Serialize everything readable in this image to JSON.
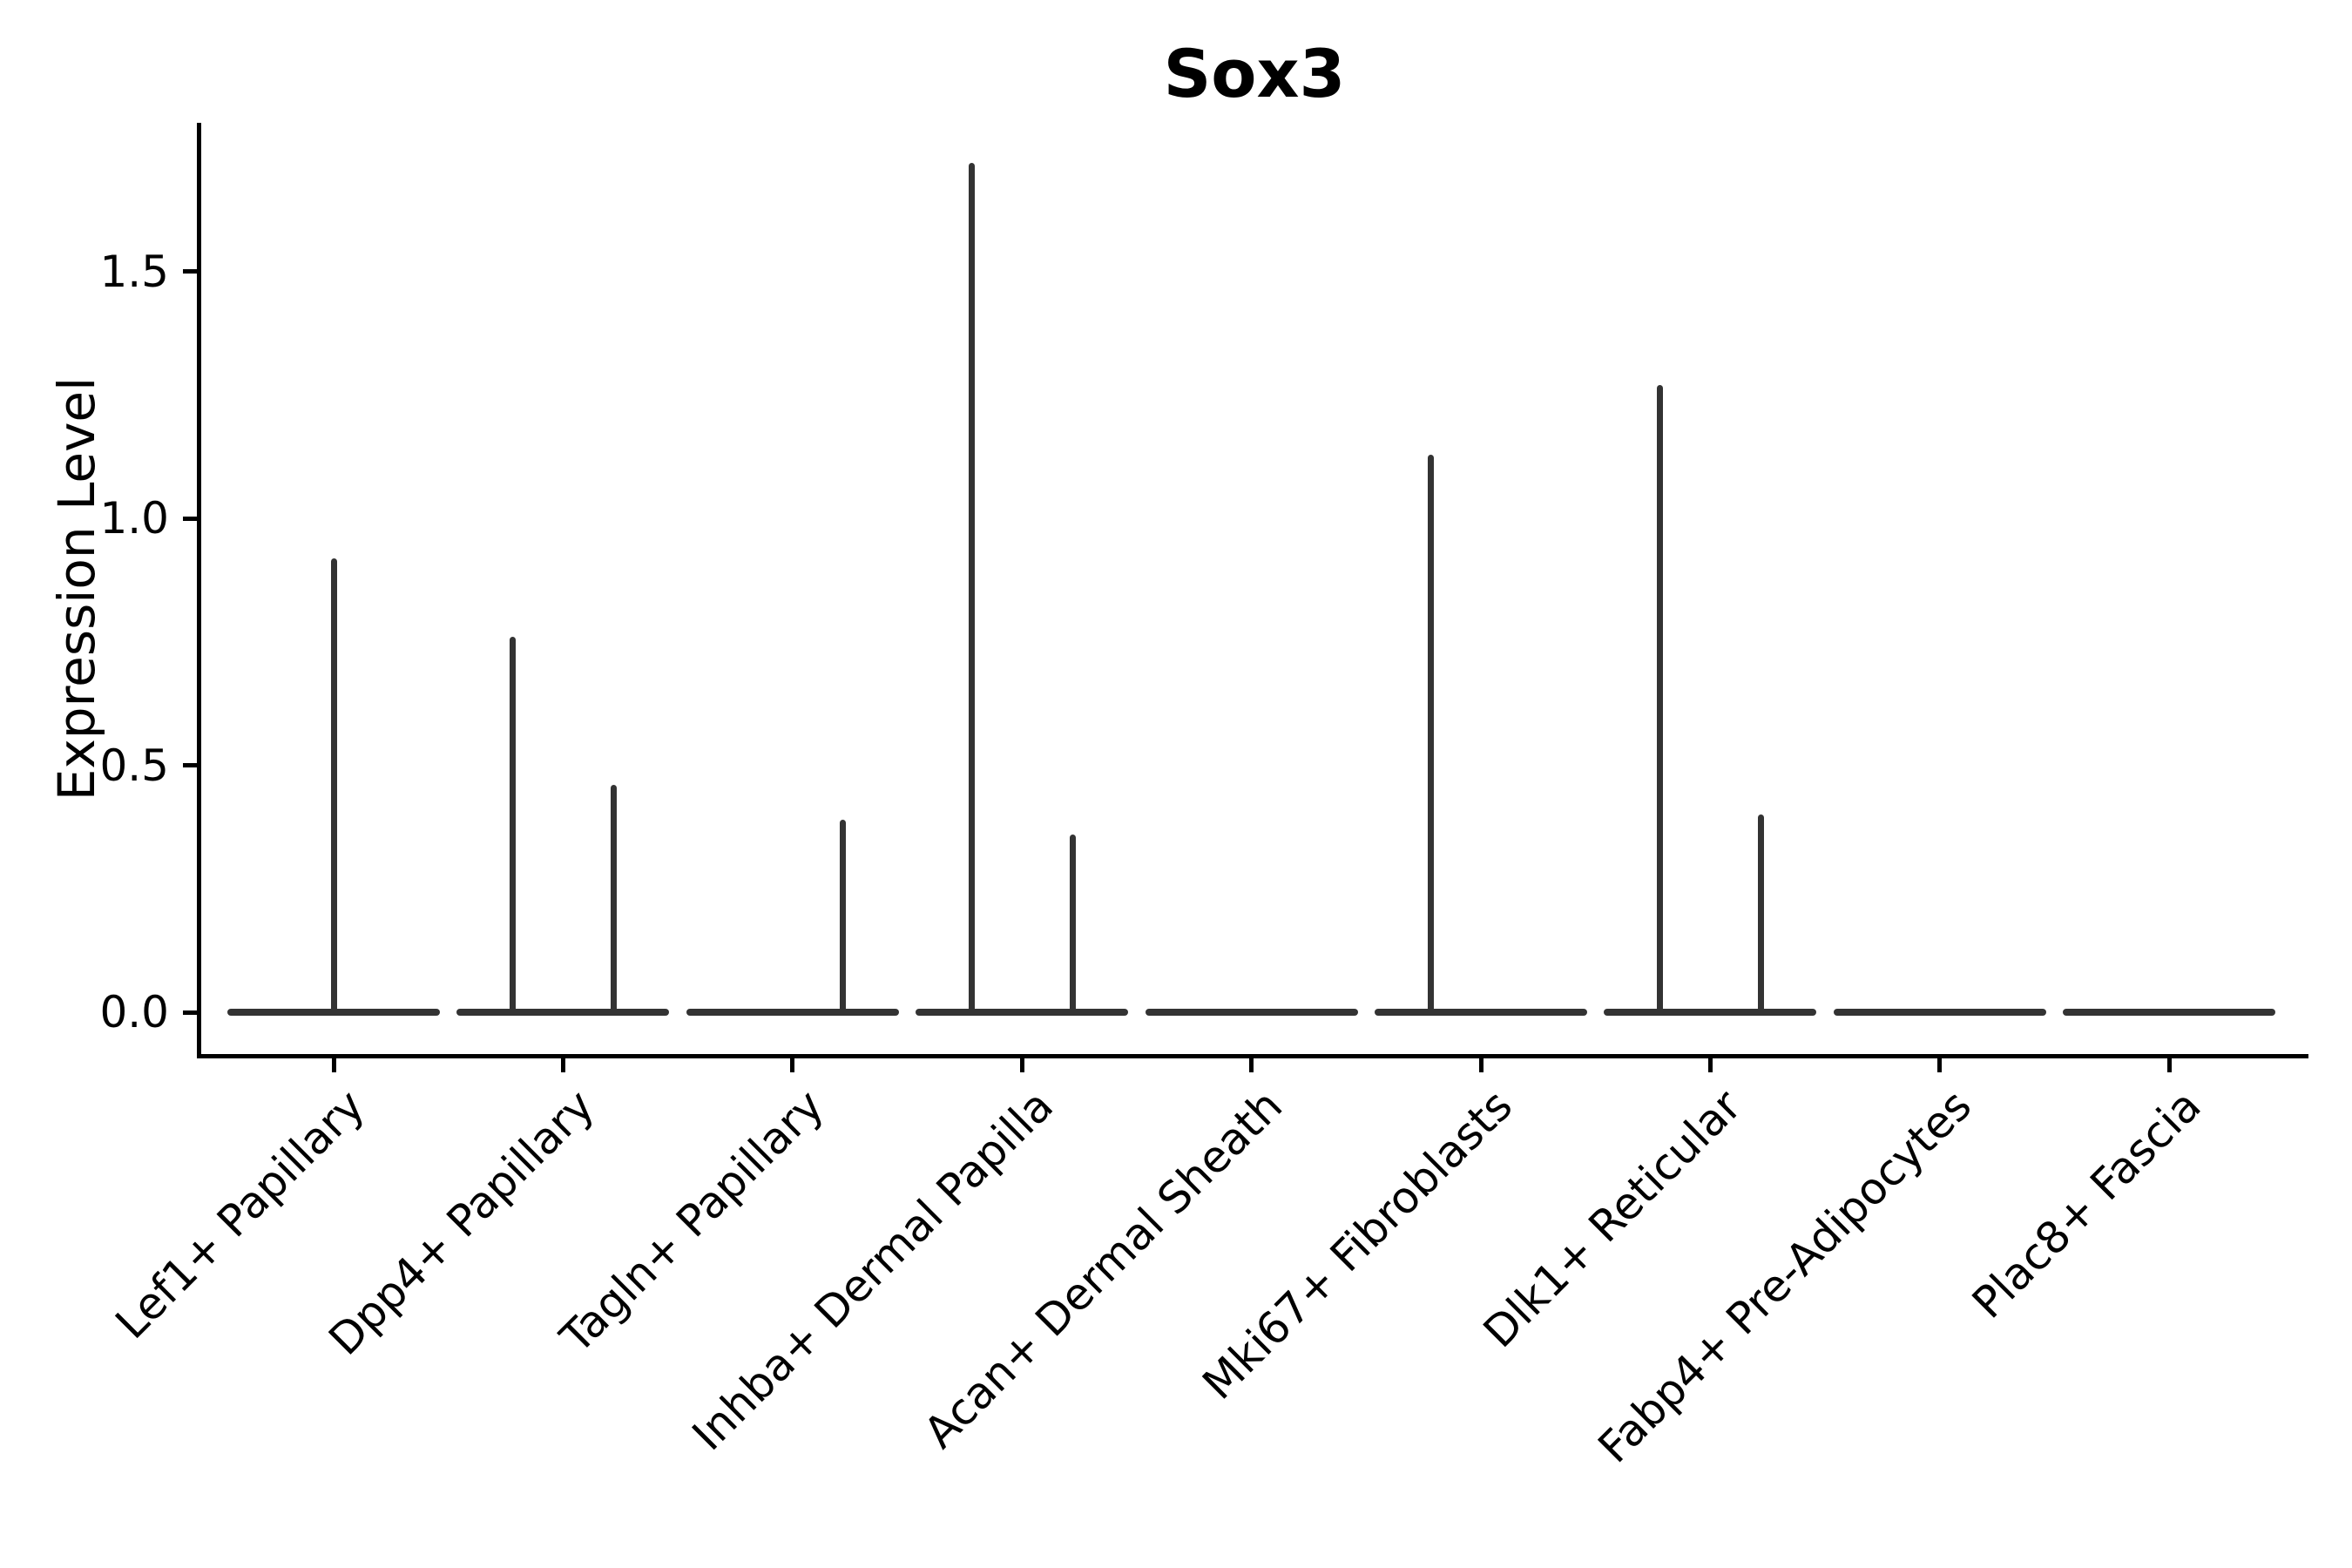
{
  "title": "Sox3",
  "ylabel": "Expression Level",
  "chart_data": {
    "type": "violin",
    "title": "Sox3",
    "xlabel": "",
    "ylabel": "Expression Level",
    "grid": false,
    "legend": "none",
    "ylim": [
      -0.09,
      1.8
    ],
    "yticks": [
      0.0,
      0.5,
      1.0,
      1.5
    ],
    "categories": [
      "Lef1+ Papillary",
      "Dpp4+ Papillary",
      "Tagln+ Papillary",
      "Inhba+ Dermal Papilla",
      "Acan+ Dermal Sheath",
      "Mki67+ Fibroblasts",
      "Dlk1+ Reticular",
      "Fabp4+ Pre-Adipocytes",
      "Plac8+ Fascia"
    ],
    "series": [
      {
        "category": "Lef1+ Papillary",
        "baseline_value": 0.0,
        "spikes": [
          {
            "value": 0.92,
            "x_offset_frac": 0.0
          }
        ]
      },
      {
        "category": "Dpp4+ Papillary",
        "baseline_value": 0.0,
        "spikes": [
          {
            "value": 0.76,
            "x_offset_frac": -0.22
          },
          {
            "value": 0.46,
            "x_offset_frac": 0.22
          }
        ]
      },
      {
        "category": "Tagln+ Papillary",
        "baseline_value": 0.0,
        "spikes": [
          {
            "value": 0.39,
            "x_offset_frac": 0.22
          }
        ]
      },
      {
        "category": "Inhba+ Dermal Papilla",
        "baseline_value": 0.0,
        "spikes": [
          {
            "value": 1.72,
            "x_offset_frac": -0.22
          },
          {
            "value": 0.36,
            "x_offset_frac": 0.22
          }
        ]
      },
      {
        "category": "Acan+ Dermal Sheath",
        "baseline_value": 0.0,
        "spikes": []
      },
      {
        "category": "Mki67+ Fibroblasts",
        "baseline_value": 0.0,
        "spikes": [
          {
            "value": 1.13,
            "x_offset_frac": -0.22
          }
        ]
      },
      {
        "category": "Dlk1+ Reticular",
        "baseline_value": 0.0,
        "spikes": [
          {
            "value": 1.27,
            "x_offset_frac": -0.22
          },
          {
            "value": 0.4,
            "x_offset_frac": 0.22
          }
        ]
      },
      {
        "category": "Fabp4+ Pre-Adipocytes",
        "baseline_value": 0.0,
        "spikes": []
      },
      {
        "category": "Plac8+ Fascia",
        "baseline_value": 0.0,
        "spikes": []
      }
    ],
    "violin_color": "#333333",
    "axis_color": "#000000"
  }
}
